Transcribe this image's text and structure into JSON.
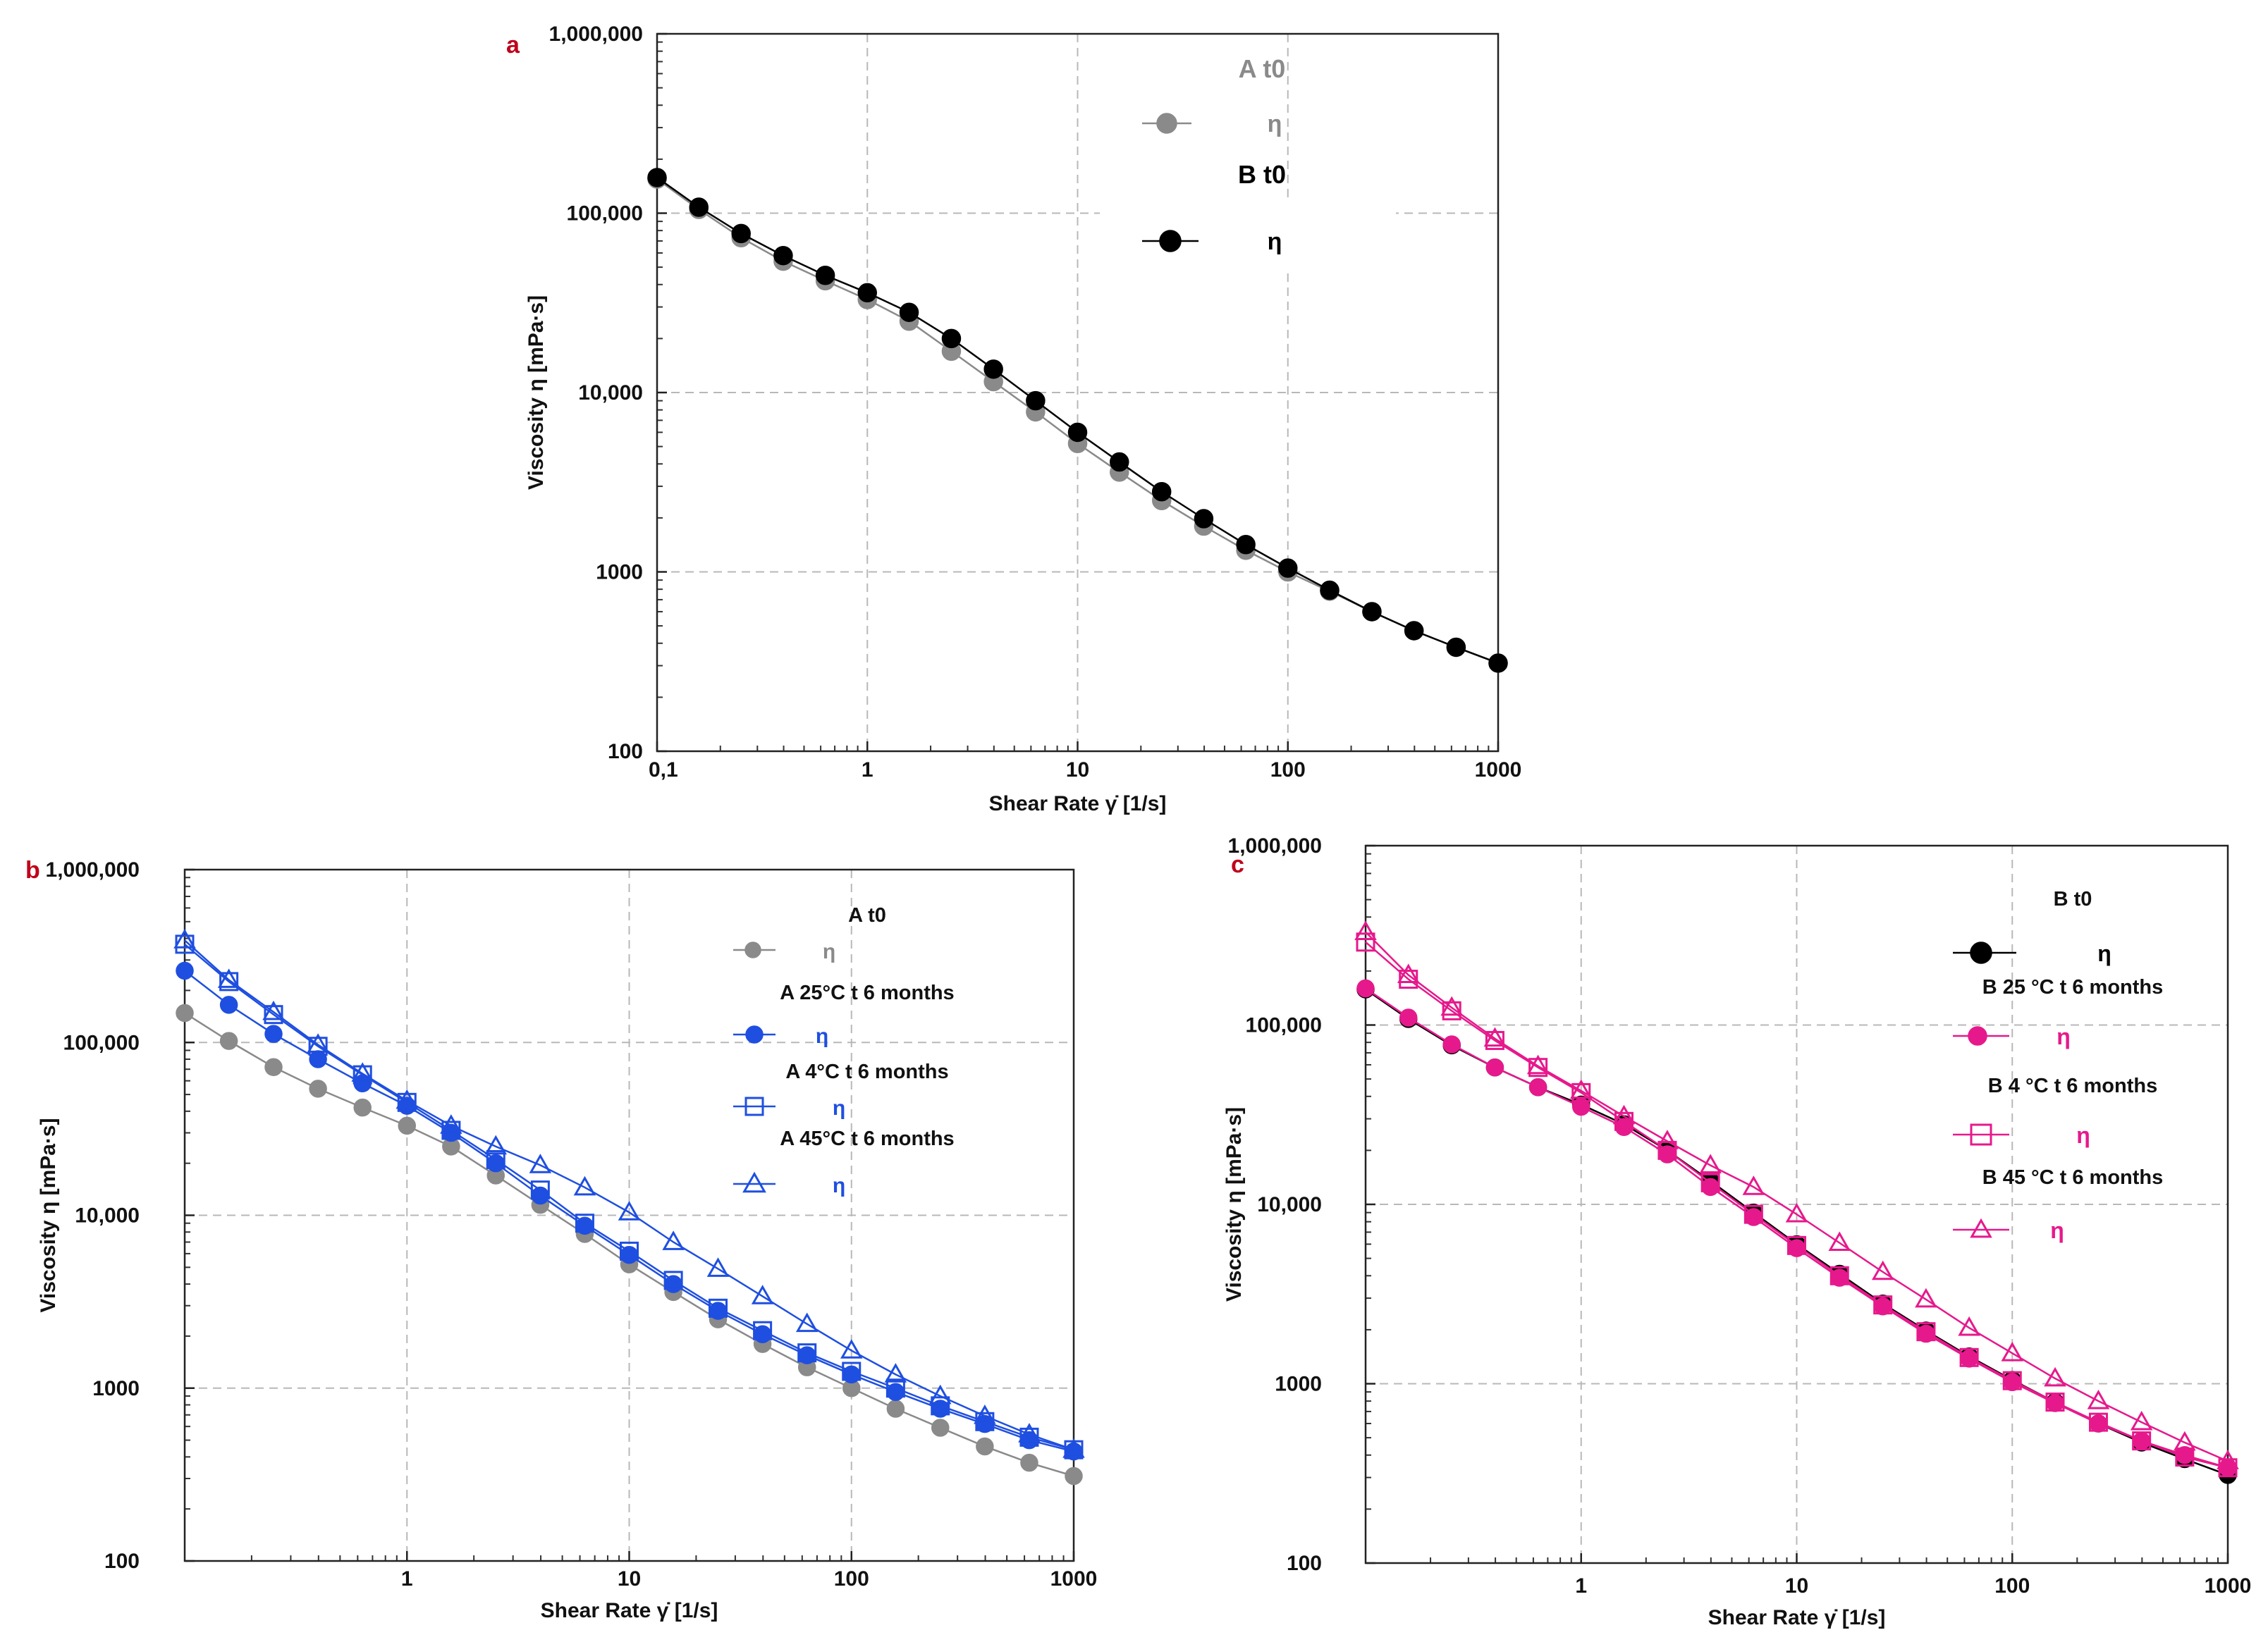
{
  "chart_data": [
    {
      "panel": "a",
      "type": "line",
      "xscale": "log",
      "yscale": "log",
      "xlabel": "Shear Rate γ̇ [1/s]",
      "ylabel": "Viscosity η [mPa·s]",
      "xlim": [
        0.1,
        1000
      ],
      "ylim": [
        100,
        1000000
      ],
      "xtick_values": [
        0.1,
        1,
        10,
        100,
        1000
      ],
      "xtick_labels": [
        "0,1",
        "1",
        "10",
        "100",
        "1000"
      ],
      "ytick_values": [
        100,
        1000,
        10000,
        100000,
        1000000
      ],
      "ytick_labels": [
        "100",
        "1000",
        "10,000",
        "100,000",
        "1,000,000"
      ],
      "grid": true,
      "legend_position": "top-right",
      "x": [
        0.1,
        0.158,
        0.251,
        0.398,
        0.631,
        1,
        1.58,
        2.51,
        3.98,
        6.31,
        10,
        15.8,
        25.1,
        39.8,
        63.1,
        100,
        158,
        251,
        398,
        631,
        1000
      ],
      "series": [
        {
          "group": "A t0",
          "name": "η",
          "color": "#8a8a8a",
          "marker": "filled-circle",
          "values": [
            155000,
            105000,
            73000,
            54000,
            42000,
            33000,
            25000,
            17000,
            11500,
            7800,
            5200,
            3600,
            2500,
            1800,
            1320,
            1000,
            780,
            600,
            470,
            380,
            310
          ]
        },
        {
          "group": "B t0",
          "name": "η",
          "color": "#000000",
          "marker": "filled-circle",
          "values": [
            158000,
            108000,
            77000,
            58000,
            45000,
            36000,
            28000,
            20000,
            13500,
            9000,
            6000,
            4100,
            2800,
            1980,
            1420,
            1050,
            790,
            600,
            470,
            380,
            310
          ]
        }
      ]
    },
    {
      "panel": "b",
      "type": "line",
      "xscale": "log",
      "yscale": "log",
      "xlabel": "Shear Rate γ̇ [1/s]",
      "ylabel": "Viscosity η [mPa·s]",
      "xlim": [
        0.1,
        1000
      ],
      "ylim": [
        100,
        1000000
      ],
      "xtick_values": [
        1,
        10,
        100,
        1000
      ],
      "xtick_labels": [
        "1",
        "10",
        "100",
        "1000"
      ],
      "ytick_values": [
        100,
        1000,
        10000,
        100000,
        1000000
      ],
      "ytick_labels": [
        "100",
        "1000",
        "10,000",
        "100,000",
        "1,000,000"
      ],
      "grid": true,
      "legend_position": "top-right",
      "x": [
        0.1,
        0.158,
        0.251,
        0.398,
        0.631,
        1,
        1.58,
        2.51,
        3.98,
        6.31,
        10,
        15.8,
        25.1,
        39.8,
        63.1,
        100,
        158,
        251,
        398,
        631,
        1000
      ],
      "series": [
        {
          "group": "A t0",
          "name": "η",
          "color": "#8a8a8a",
          "marker": "filled-circle",
          "values": [
            148000,
            102000,
            72000,
            54000,
            42000,
            33000,
            25000,
            17000,
            11500,
            7800,
            5200,
            3600,
            2500,
            1800,
            1320,
            1000,
            760,
            590,
            460,
            370,
            310
          ]
        },
        {
          "group": "A 25°C t 6 months",
          "name": "η",
          "color": "#1f4fe0",
          "marker": "filled-circle",
          "values": [
            260000,
            165000,
            112000,
            80000,
            58000,
            43000,
            30000,
            20000,
            13000,
            8700,
            5900,
            4000,
            2800,
            2050,
            1550,
            1200,
            950,
            760,
            620,
            500,
            430
          ]
        },
        {
          "group": "A 4°C t 6 months",
          "name": "η",
          "color": "#1f4fe0",
          "marker": "open-square",
          "values": [
            370000,
            225000,
            145000,
            95000,
            65000,
            45000,
            31000,
            21000,
            14000,
            9000,
            6200,
            4200,
            2900,
            2150,
            1600,
            1250,
            1000,
            790,
            640,
            520,
            440
          ]
        },
        {
          "group": "A 45°C t 6 months",
          "name": "η",
          "color": "#1f4fe0",
          "marker": "open-triangle",
          "values": [
            390000,
            230000,
            150000,
            97000,
            66000,
            46000,
            33000,
            25000,
            19500,
            14500,
            10400,
            7000,
            4900,
            3400,
            2350,
            1650,
            1200,
            900,
            690,
            540,
            440
          ]
        }
      ]
    },
    {
      "panel": "c",
      "type": "line",
      "xscale": "log",
      "yscale": "log",
      "xlabel": "Shear Rate γ̇ [1/s]",
      "ylabel": "Viscosity η [mPa·s]",
      "xlim": [
        0.1,
        1000
      ],
      "ylim": [
        100,
        1000000
      ],
      "xtick_values": [
        1,
        10,
        100,
        1000
      ],
      "xtick_labels": [
        "1",
        "10",
        "100",
        "1000"
      ],
      "ytick_values": [
        100,
        1000,
        10000,
        100000,
        1000000
      ],
      "ytick_labels": [
        "100",
        "1000",
        "10,000",
        "100,000",
        "1,000,000"
      ],
      "grid": true,
      "legend_position": "top-right",
      "x": [
        0.1,
        0.158,
        0.251,
        0.398,
        0.631,
        1,
        1.58,
        2.51,
        3.98,
        6.31,
        10,
        15.8,
        25.1,
        39.8,
        63.1,
        100,
        158,
        251,
        398,
        631,
        1000
      ],
      "series": [
        {
          "group": "B t0",
          "name": "η",
          "color": "#000000",
          "marker": "filled-circle",
          "values": [
            158000,
            108000,
            77000,
            58000,
            45000,
            36000,
            28000,
            20000,
            13500,
            9000,
            6000,
            4100,
            2800,
            1980,
            1420,
            1050,
            790,
            600,
            470,
            380,
            310
          ]
        },
        {
          "group": "B 25 °C t 6 months",
          "name": "η",
          "color": "#e6198c",
          "marker": "filled-circle",
          "values": [
            160000,
            110000,
            78000,
            58000,
            45000,
            35000,
            27000,
            19000,
            12500,
            8500,
            5700,
            3900,
            2700,
            1900,
            1380,
            1020,
            780,
            600,
            480,
            400,
            340
          ]
        },
        {
          "group": "B 4 °C t 6 months",
          "name": "η",
          "color": "#e6198c",
          "marker": "open-square",
          "values": [
            290000,
            180000,
            120000,
            82000,
            58000,
            42000,
            29000,
            20000,
            13200,
            8800,
            5900,
            4000,
            2750,
            1950,
            1400,
            1040,
            790,
            610,
            480,
            390,
            340
          ]
        },
        {
          "group": "B 45 °C t 6 months",
          "name": "η",
          "color": "#e6198c",
          "marker": "open-triangle",
          "values": [
            330000,
            190000,
            125000,
            84000,
            59000,
            43000,
            31000,
            22500,
            16500,
            12500,
            8800,
            6100,
            4200,
            2950,
            2050,
            1480,
            1070,
            800,
            610,
            470,
            370
          ]
        }
      ]
    }
  ]
}
